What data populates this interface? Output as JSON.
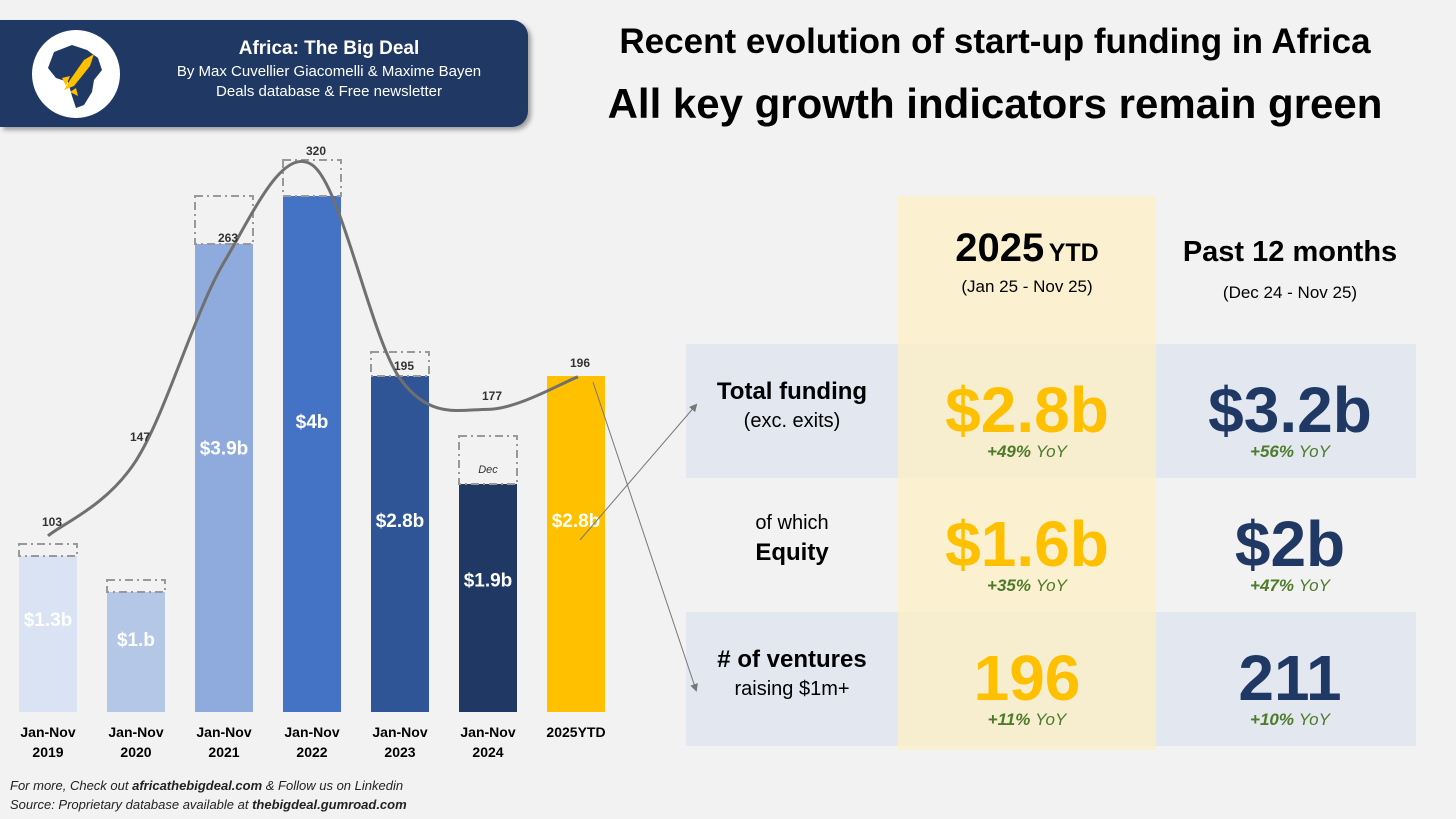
{
  "header": {
    "brand": "Africa: The Big Deal",
    "authors": "By Max Cuvellier Giacomelli & Maxime Bayen",
    "tagline": "Deals database & Free newsletter"
  },
  "title": "Recent evolution of start-up funding in Africa",
  "subtitle": "All key growth indicators remain green",
  "chart_data": {
    "type": "bar",
    "categories": [
      [
        "Jan-Nov",
        "2019"
      ],
      [
        "Jan-Nov",
        "2020"
      ],
      [
        "Jan-Nov",
        "2021"
      ],
      [
        "Jan-Nov",
        "2022"
      ],
      [
        "Jan-Nov",
        "2023"
      ],
      [
        "Jan-Nov",
        "2024"
      ],
      [
        "2025YTD",
        ""
      ]
    ],
    "funding_b": [
      1.3,
      1.0,
      3.9,
      4.3,
      2.8,
      1.9,
      2.8
    ],
    "funding_labels": [
      "$1.3b",
      "$1.b",
      "$3.9b",
      "$4b",
      "$2.8b",
      "$1.9b",
      "$2.8b"
    ],
    "december_increment_b": [
      0.1,
      0.1,
      0.4,
      0.3,
      0.2,
      0.4,
      null
    ],
    "dec_label": "Dec",
    "ventures_raising_1m": [
      103,
      147,
      263,
      320,
      195,
      177,
      196
    ],
    "colors": [
      "#dae3f3",
      "#b4c7e7",
      "#8faadc",
      "#4472c4",
      "#2f5597",
      "#1f3864",
      "#ffc000"
    ],
    "line_color": "#707070",
    "grid": false
  },
  "table": {
    "col1": {
      "title": "2025",
      "suffix": "YTD",
      "range": "(Jan 25 - Nov 25)"
    },
    "col2": {
      "title": "Past 12 months",
      "range": "(Dec 24 - Nov 25)"
    },
    "rows": [
      {
        "label1": "Total funding",
        "label2": "(exc. exits)",
        "ytd": "$2.8b",
        "ytd_yoy": "+49%",
        "p12": "$3.2b",
        "p12_yoy": "+56%"
      },
      {
        "label1": "of which",
        "label2": "Equity",
        "ytd": "$1.6b",
        "ytd_yoy": "+35%",
        "p12": "$2b",
        "p12_yoy": "+47%"
      },
      {
        "label1": "# of ventures",
        "label2": "raising $1m+",
        "ytd": "196",
        "ytd_yoy": "+11%",
        "p12": "211",
        "p12_yoy": "+10%"
      }
    ],
    "yoy_suffix": "YoY",
    "ytd_color": "#ffc000",
    "p12_color": "#1f3864"
  },
  "footer": {
    "line1_pre": "For more, Check out ",
    "line1_link": "africathebigdeal.com",
    "line1_post": " & Follow us on Linkedin",
    "line2_pre": "Source: Proprietary database available at ",
    "line2_link": "thebigdeal.gumroad.com"
  }
}
